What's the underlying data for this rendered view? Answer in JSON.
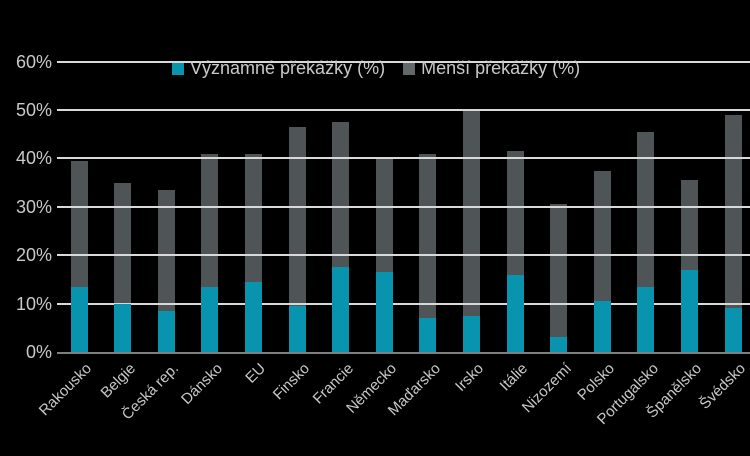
{
  "chart_data": {
    "type": "bar",
    "stacked": true,
    "title": "",
    "categories": [
      "Rakousko",
      "Belgie",
      "Česká rep.",
      "Dánsko",
      "EU",
      "Finsko",
      "Francie",
      "Německo",
      "Maďarsko",
      "Irsko",
      "Itálie",
      "Nizozemí",
      "Polsko",
      "Portugalsko",
      "Španělsko",
      "Švédsko"
    ],
    "series": [
      {
        "name": "Významné překážky (%)",
        "color": "#0894AE",
        "values": [
          13.5,
          10,
          8.5,
          13.5,
          14.5,
          9.5,
          17.5,
          16.5,
          7,
          7.5,
          16,
          3,
          10.5,
          13.5,
          17,
          9
        ]
      },
      {
        "name": "Menší překážky (%)",
        "color": "#4F5457",
        "values": [
          26,
          25,
          25,
          27.5,
          26.5,
          37,
          30,
          23.5,
          34,
          42.5,
          25.5,
          27.5,
          27,
          32,
          18.5,
          40
        ]
      }
    ],
    "totals": [
      39.5,
      35,
      33.5,
      41,
      41,
      46.5,
      47.5,
      40,
      41,
      50,
      41.5,
      30.5,
      37.5,
      45.5,
      35.5,
      49
    ],
    "ylabel": "",
    "xlabel": "",
    "ylim": [
      0,
      65
    ],
    "yticks": [
      "0%",
      "10%",
      "20%",
      "30%",
      "40%",
      "50%",
      "60%"
    ],
    "grid": true,
    "legend_position": "top"
  },
  "colors": {
    "background": "#000000",
    "grid": "#D9D9D9",
    "axis": "#7F7F7F",
    "text": "#C9C9C9",
    "legend_minor_swatch": "#63686B"
  }
}
